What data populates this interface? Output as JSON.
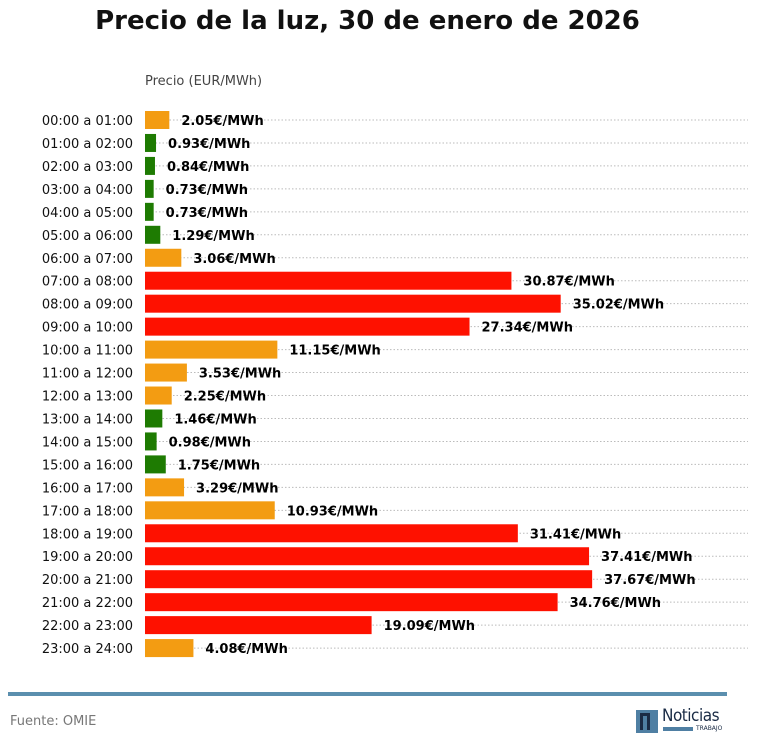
{
  "chart_data": {
    "type": "bar",
    "orientation": "horizontal",
    "title": "Precio de la luz, 30 de enero de 2026",
    "xlabel": "Precio (EUR/MWh)",
    "categories": [
      "00:00 a 01:00",
      "01:00 a 02:00",
      "02:00 a 03:00",
      "03:00 a 04:00",
      "04:00 a 05:00",
      "05:00 a 06:00",
      "06:00 a 07:00",
      "07:00 a 08:00",
      "08:00 a 09:00",
      "09:00 a 10:00",
      "10:00 a 11:00",
      "11:00 a 12:00",
      "12:00 a 13:00",
      "13:00 a 14:00",
      "14:00 a 15:00",
      "15:00 a 16:00",
      "16:00 a 17:00",
      "17:00 a 18:00",
      "18:00 a 19:00",
      "19:00 a 20:00",
      "20:00 a 21:00",
      "21:00 a 22:00",
      "22:00 a 23:00",
      "23:00 a 24:00"
    ],
    "values": [
      2.05,
      0.93,
      0.84,
      0.73,
      0.73,
      1.29,
      3.06,
      30.87,
      35.02,
      27.34,
      11.15,
      3.53,
      2.25,
      1.46,
      0.98,
      1.75,
      3.29,
      10.93,
      31.41,
      37.41,
      37.67,
      34.76,
      19.09,
      4.08
    ],
    "data_labels": [
      "2.05€/MWh",
      "0.93€/MWh",
      "0.84€/MWh",
      "0.73€/MWh",
      "0.73€/MWh",
      "1.29€/MWh",
      "3.06€/MWh",
      "30.87€/MWh",
      "35.02€/MWh",
      "27.34€/MWh",
      "11.15€/MWh",
      "3.53€/MWh",
      "2.25€/MWh",
      "1.46€/MWh",
      "0.98€/MWh",
      "1.75€/MWh",
      "3.29€/MWh",
      "10.93€/MWh",
      "31.41€/MWh",
      "37.41€/MWh",
      "37.67€/MWh",
      "34.76€/MWh",
      "19.09€/MWh",
      "4.08€/MWh"
    ],
    "levels": [
      "medium",
      "low",
      "low",
      "low",
      "low",
      "low",
      "medium",
      "high",
      "high",
      "high",
      "medium",
      "medium",
      "medium",
      "low",
      "low",
      "low",
      "medium",
      "medium",
      "high",
      "high",
      "high",
      "high",
      "high",
      "medium"
    ],
    "colors": {
      "low": "#1e7b02",
      "medium": "#f39c12",
      "high": "#fe1100"
    },
    "xlim": [
      0,
      50.8
    ],
    "grid": "horizontal dotted"
  },
  "footer": {
    "source": "Fuente: OMIE",
    "logo_text": "Noticias",
    "logo_sub": "TRABAJO"
  }
}
